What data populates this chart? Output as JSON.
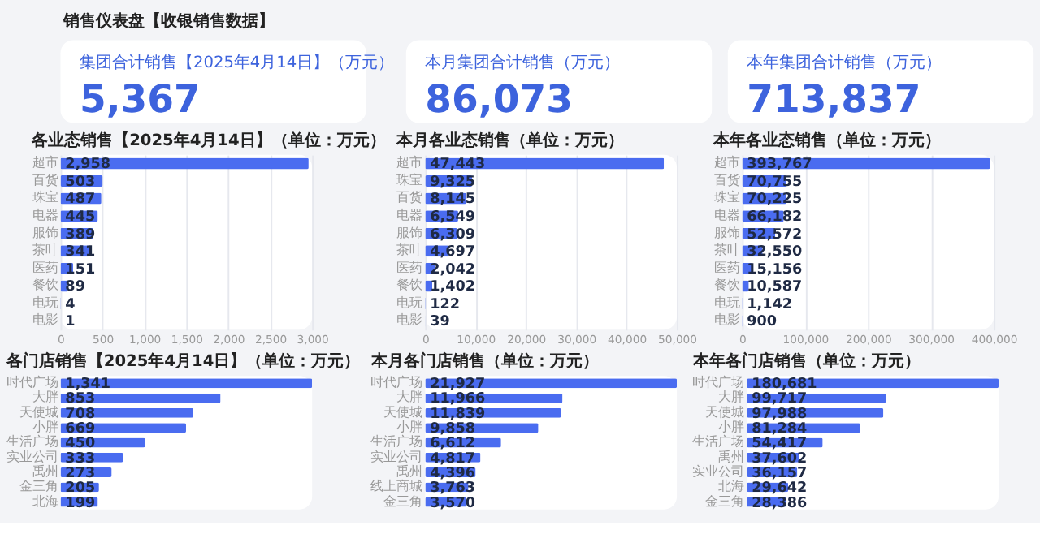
{
  "chart_data": [
    {
      "type": "other",
      "title": "销售仪表盘【收银销售数据】"
    },
    {
      "type": "other",
      "title": "集团合计销售【2025年4月14日】（万元）",
      "annotations": [
        "5,367"
      ]
    },
    {
      "type": "other",
      "title": "本月集团合计销售（万元）",
      "annotations": [
        "86,073"
      ]
    },
    {
      "type": "other",
      "title": "本年集团合计销售（万元）",
      "annotations": [
        "713,837"
      ]
    },
    {
      "type": "bar",
      "orientation": "horizontal",
      "title": "各业态销售【2025年4月14日】（单位：万元）",
      "categories": [
        "超市",
        "百货",
        "珠宝",
        "电器",
        "服饰",
        "茶叶",
        "医药",
        "餐饮",
        "电玩",
        "电影"
      ],
      "series": [
        {
          "color": "#4a6cf0",
          "values": [
            2958,
            503,
            487,
            445,
            389,
            341,
            151,
            89,
            4,
            1
          ],
          "value_labels": [
            "2,958",
            "503",
            "487",
            "445",
            "389",
            "341",
            "151",
            "89",
            "4",
            "1"
          ]
        }
      ],
      "xlim": [
        0,
        3000
      ],
      "xticks": [
        0,
        {
          "value": 500,
          "label": "500"
        },
        {
          "value": 1000,
          "label": "1,000"
        },
        {
          "value": 1500,
          "label": "1,500"
        },
        {
          "value": 2000,
          "label": "2,000"
        },
        {
          "value": 2500,
          "label": "2,500"
        },
        {
          "value": 3000,
          "label": "3,000"
        }
      ],
      "grid": "x"
    },
    {
      "type": "bar",
      "orientation": "horizontal",
      "title": "本月各业态销售（单位：万元）",
      "categories": [
        "超市",
        "珠宝",
        "百货",
        "电器",
        "服饰",
        "茶叶",
        "医药",
        "餐饮",
        "电玩",
        "电影"
      ],
      "series": [
        {
          "color": "#4a6cf0",
          "values": [
            47443,
            9325,
            8145,
            6549,
            6309,
            4697,
            2042,
            1402,
            122,
            39
          ],
          "value_labels": [
            "47,443",
            "9,325",
            "8,145",
            "6,549",
            "6,309",
            "4,697",
            "2,042",
            "1,402",
            "122",
            "39"
          ]
        }
      ],
      "xlim": [
        0,
        50000
      ],
      "xticks": [
        0,
        {
          "value": 10000,
          "label": "10,000"
        },
        {
          "value": 20000,
          "label": "20,000"
        },
        {
          "value": 30000,
          "label": "30,000"
        },
        {
          "value": 40000,
          "label": "40,000"
        },
        {
          "value": 50000,
          "label": "50,000"
        }
      ],
      "grid": "x"
    },
    {
      "type": "bar",
      "orientation": "horizontal",
      "title": "本年各业态销售（单位：万元）",
      "categories": [
        "超市",
        "百货",
        "珠宝",
        "电器",
        "服饰",
        "茶叶",
        "医药",
        "餐饮",
        "电玩",
        "电影"
      ],
      "series": [
        {
          "color": "#4a6cf0",
          "values": [
            393767,
            70755,
            70225,
            66182,
            52572,
            32550,
            15156,
            10587,
            1142,
            900
          ],
          "value_labels": [
            "393,767",
            "70,755",
            "70,225",
            "66,182",
            "52,572",
            "32,550",
            "15,156",
            "10,587",
            "1,142",
            "900"
          ]
        }
      ],
      "xlim": [
        0,
        400000
      ],
      "xticks": [
        0,
        {
          "value": 100000,
          "label": "100,000"
        },
        {
          "value": 200000,
          "label": "200,000"
        },
        {
          "value": 300000,
          "label": "300,000"
        },
        {
          "value": 400000,
          "label": "400,000"
        }
      ],
      "grid": "x"
    },
    {
      "type": "bar",
      "orientation": "horizontal",
      "title": "各门店销售【2025年4月14日】（单位：万元）",
      "categories": [
        "时代广场",
        "大胖",
        "天使城",
        "小胖",
        "生活广场",
        "实业公司",
        "禹州",
        "金三角",
        "北海"
      ],
      "series": [
        {
          "color": "#4a6cf0",
          "values": [
            1341,
            853,
            708,
            669,
            450,
            333,
            273,
            205,
            199
          ],
          "value_labels": [
            "1,341",
            "853",
            "708",
            "669",
            "450",
            "333",
            "273",
            "205",
            "199"
          ]
        }
      ],
      "tick_labels": "y"
    },
    {
      "type": "bar",
      "orientation": "horizontal",
      "title": "本月各门店销售（单位：万元）",
      "categories": [
        "时代广场",
        "大胖",
        "天使城",
        "小胖",
        "生活广场",
        "实业公司",
        "禹州",
        "线上商城",
        "金三角"
      ],
      "series": [
        {
          "color": "#4a6cf0",
          "values": [
            21927,
            11966,
            11839,
            9858,
            6612,
            4817,
            4396,
            3763,
            3570
          ],
          "value_labels": [
            "21,927",
            "11,966",
            "11,839",
            "9,858",
            "6,612",
            "4,817",
            "4,396",
            "3,763",
            "3,570"
          ]
        }
      ],
      "tick_labels": "y"
    },
    {
      "type": "bar",
      "orientation": "horizontal",
      "title": "本年各门店销售（单位：万元）",
      "categories": [
        "时代广场",
        "大胖",
        "天使城",
        "小胖",
        "生活广场",
        "禹州",
        "实业公司",
        "北海",
        "金三角"
      ],
      "series": [
        {
          "color": "#4a6cf0",
          "values": [
            180681,
            99717,
            97988,
            81284,
            54417,
            37602,
            36157,
            29642,
            28386
          ],
          "value_labels": [
            "180,681",
            "99,717",
            "97,988",
            "81,284",
            "54,417",
            "37,602",
            "36,157",
            "29,642",
            "28,386"
          ]
        }
      ],
      "tick_labels": "y"
    }
  ]
}
